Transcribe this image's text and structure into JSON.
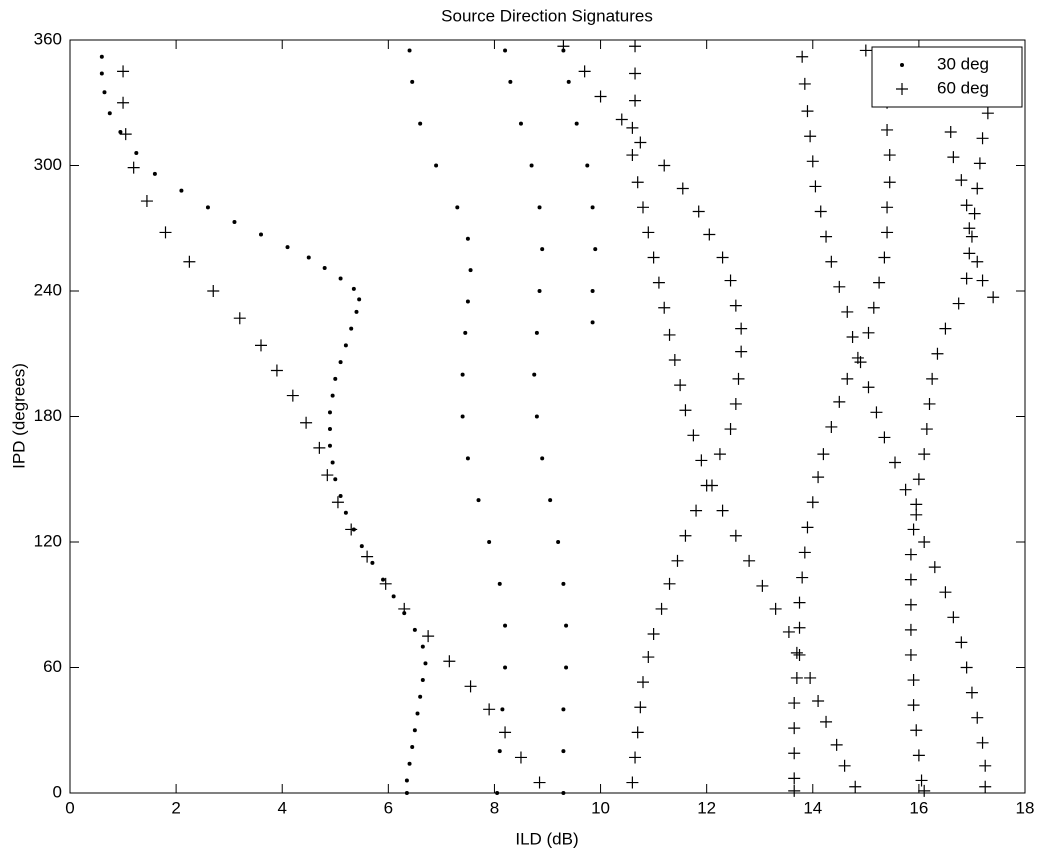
{
  "chart_data": {
    "type": "scatter",
    "title": "Source Direction Signatures",
    "x_label": "ILD (dB)",
    "y_label": "IPD (degrees)",
    "xlim": [
      0,
      18
    ],
    "xticks": [
      0,
      2,
      4,
      6,
      8,
      10,
      12,
      14,
      16,
      18
    ],
    "ylim": [
      0,
      360
    ],
    "yticks": [
      0,
      60,
      120,
      180,
      240,
      300,
      360
    ],
    "legend": "upper right",
    "series": [
      {
        "name": "30 deg",
        "color": "#000000",
        "marker": "dot",
        "x": [
          0.6,
          0.6,
          0.65,
          0.75,
          0.95,
          1.25,
          1.6,
          2.1,
          2.6,
          3.1,
          3.6,
          4.1,
          4.5,
          4.8,
          5.1,
          5.35,
          5.45,
          5.4,
          5.3,
          5.2,
          5.1,
          5.0,
          4.95,
          4.9,
          4.9,
          4.9,
          4.95,
          5.0,
          5.1,
          5.2,
          5.35,
          5.5,
          5.7,
          5.9,
          6.1,
          6.3,
          6.5,
          6.65,
          6.7,
          6.65,
          6.6,
          6.55,
          6.5,
          6.45,
          6.4,
          6.35,
          6.35,
          6.4,
          6.45,
          6.6,
          6.9,
          7.3,
          7.5,
          7.55,
          7.5,
          7.45,
          7.4,
          7.4,
          7.5,
          7.7,
          7.9,
          8.1,
          8.2,
          8.2,
          8.15,
          8.1,
          8.05,
          8.2,
          8.3,
          8.5,
          8.7,
          8.85,
          8.9,
          8.85,
          8.8,
          8.75,
          8.8,
          8.9,
          9.05,
          9.2,
          9.3,
          9.35,
          9.35,
          9.3,
          9.3,
          9.3,
          9.3,
          9.4,
          9.55,
          9.75,
          9.85,
          9.9,
          9.85,
          9.85
        ],
        "values": [
          352,
          344,
          335,
          325,
          316,
          306,
          296,
          288,
          280,
          273,
          267,
          261,
          256,
          251,
          246,
          241,
          236,
          230,
          222,
          214,
          206,
          198,
          190,
          182,
          174,
          166,
          158,
          150,
          142,
          134,
          126,
          118,
          110,
          102,
          94,
          86,
          78,
          70,
          62,
          54,
          46,
          38,
          30,
          22,
          14,
          6,
          0,
          355,
          340,
          320,
          300,
          280,
          265,
          250,
          235,
          220,
          200,
          180,
          160,
          140,
          120,
          100,
          80,
          60,
          40,
          20,
          0,
          355,
          340,
          320,
          300,
          280,
          260,
          240,
          220,
          200,
          180,
          160,
          140,
          120,
          100,
          80,
          60,
          40,
          20,
          0,
          355,
          340,
          320,
          300,
          280,
          260,
          240,
          225
        ]
      },
      {
        "name": "60 deg",
        "color": "#000000",
        "marker": "plus",
        "x": [
          1,
          1,
          1.05,
          1.2,
          1.45,
          1.8,
          2.25,
          2.7,
          3.2,
          3.6,
          3.9,
          4.2,
          4.45,
          4.7,
          4.85,
          5.05,
          5.3,
          5.6,
          5.95,
          6.3,
          6.75,
          7.15,
          7.55,
          7.9,
          8.2,
          8.5,
          8.85,
          9.3,
          9.7,
          10,
          10.4,
          10.75,
          11.2,
          11.55,
          11.85,
          12.05,
          12.3,
          12.45,
          12.55,
          12.65,
          12.65,
          12.6,
          12.55,
          12.45,
          12.25,
          12.1,
          12.3,
          12.55,
          12.8,
          13.05,
          13.3,
          13.55,
          13.75,
          13.95,
          14.1,
          14.25,
          14.45,
          14.6,
          14.8,
          10.65,
          10.65,
          10.65,
          10.6,
          10.6,
          10.7,
          10.8,
          10.9,
          11.0,
          11.1,
          11.2,
          11.3,
          11.4,
          11.5,
          11.6,
          11.75,
          11.9,
          12.0,
          11.8,
          11.6,
          11.45,
          11.3,
          11.15,
          11.0,
          10.9,
          10.8,
          10.75,
          10.7,
          10.65,
          10.6,
          13.8,
          13.85,
          13.9,
          13.95,
          14.0,
          14.05,
          14.15,
          14.25,
          14.35,
          14.5,
          14.65,
          14.75,
          14.9,
          15.05,
          15.2,
          15.35,
          15.55,
          15.75,
          15.95,
          16.1,
          16.3,
          16.5,
          16.65,
          16.8,
          16.9,
          17.0,
          17.1,
          17.2,
          17.25,
          17.25,
          15.0,
          15.3,
          15.4,
          15.4,
          15.45,
          15.45,
          15.4,
          15.4,
          15.35,
          15.25,
          15.15,
          15.05,
          14.85,
          14.65,
          14.5,
          14.35,
          14.2,
          14.1,
          14.0,
          13.9,
          13.85,
          13.8,
          13.75,
          13.75,
          13.7,
          13.7,
          13.65,
          13.65,
          13.65,
          13.65,
          13.65,
          16.6,
          16.65,
          16.8,
          16.9,
          16.95,
          16.95,
          16.9,
          16.75,
          16.5,
          16.35,
          16.25,
          16.2,
          16.15,
          16.1,
          16.0,
          15.95,
          15.9,
          15.85,
          15.85,
          15.85,
          15.85,
          15.85,
          15.9,
          15.9,
          15.95,
          16.0,
          16.05,
          16.1,
          17.3,
          17.2,
          17.15,
          17.1,
          17.05,
          17.0,
          17.1,
          17.2,
          17.4
        ],
        "values": [
          345,
          330,
          315,
          299,
          283,
          268,
          254,
          240,
          227,
          214,
          202,
          190,
          177,
          165,
          152,
          139,
          126,
          113,
          100,
          88,
          75,
          63,
          51,
          40,
          29,
          17,
          5,
          357,
          345,
          333,
          322,
          311,
          300,
          289,
          278,
          267,
          256,
          245,
          233,
          222,
          211,
          198,
          186,
          174,
          162,
          147,
          135,
          123,
          111,
          99,
          88,
          77,
          66,
          55,
          44,
          34,
          23,
          13,
          3,
          357,
          344,
          331,
          318,
          305,
          292,
          280,
          268,
          256,
          244,
          232,
          219,
          207,
          195,
          183,
          171,
          159,
          147,
          135,
          123,
          111,
          100,
          88,
          76,
          65,
          53,
          41,
          29,
          17,
          5,
          352,
          339,
          326,
          314,
          302,
          290,
          278,
          266,
          254,
          242,
          230,
          218,
          206,
          194,
          182,
          170,
          158,
          145,
          133,
          120,
          108,
          96,
          84,
          72,
          60,
          48,
          36,
          24,
          13,
          3,
          355,
          344,
          330,
          317,
          305,
          292,
          280,
          268,
          256,
          244,
          232,
          220,
          208,
          198,
          187,
          175,
          162,
          151,
          139,
          127,
          115,
          103,
          91,
          79,
          67,
          55,
          43,
          31,
          19,
          7,
          1,
          316,
          304,
          293,
          281,
          270,
          258,
          246,
          234,
          222,
          210,
          198,
          186,
          174,
          162,
          150,
          138,
          126,
          114,
          102,
          90,
          78,
          66,
          54,
          42,
          30,
          18,
          6,
          1,
          325,
          313,
          301,
          289,
          277,
          266,
          254,
          245,
          237
        ]
      }
    ]
  }
}
